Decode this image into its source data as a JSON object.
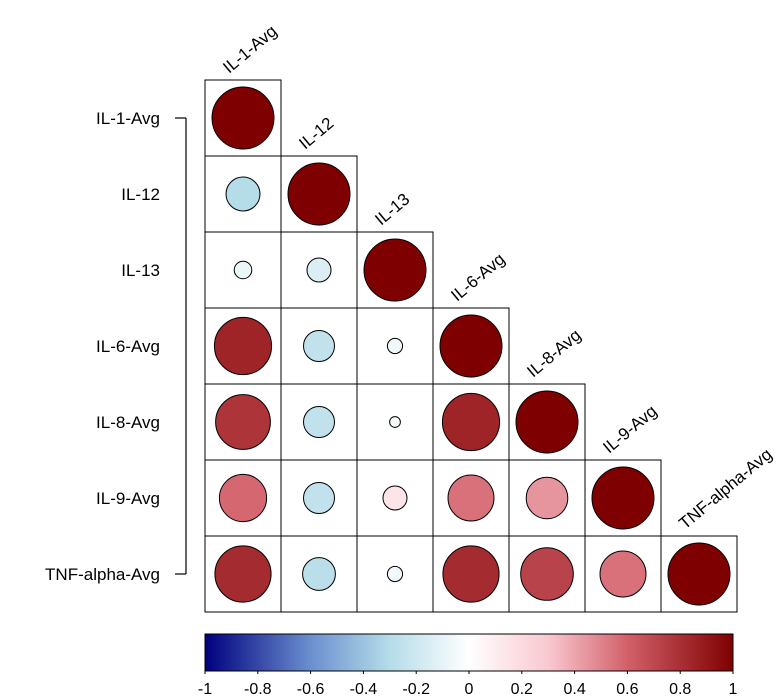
{
  "chart_data": {
    "type": "heatmap",
    "style": "correlation-matrix-lower-circles",
    "variables": [
      "IL-1-Avg",
      "IL-12",
      "IL-13",
      "IL-6-Avg",
      "IL-8-Avg",
      "IL-9-Avg",
      "TNF-alpha-Avg"
    ],
    "matrix": [
      [
        1.0
      ],
      [
        -0.3,
        1.0
      ],
      [
        -0.08,
        -0.15,
        1.0
      ],
      [
        0.85,
        -0.25,
        -0.06,
        1.0
      ],
      [
        0.78,
        -0.25,
        -0.03,
        0.85,
        1.0
      ],
      [
        0.58,
        -0.25,
        0.15,
        0.55,
        0.45,
        1.0
      ],
      [
        0.82,
        -0.28,
        -0.06,
        0.82,
        0.72,
        0.55,
        1.0
      ]
    ],
    "colorbar": {
      "ticks": [
        "-1",
        "-0.8",
        "-0.6",
        "-0.4",
        "-0.2",
        "0",
        "0.2",
        "0.4",
        "0.6",
        "0.8",
        "1"
      ],
      "range": [
        -1,
        1
      ],
      "colors": {
        "neg": "#00007f",
        "mid": "#ffffff",
        "pos": "#7f0000"
      }
    }
  }
}
